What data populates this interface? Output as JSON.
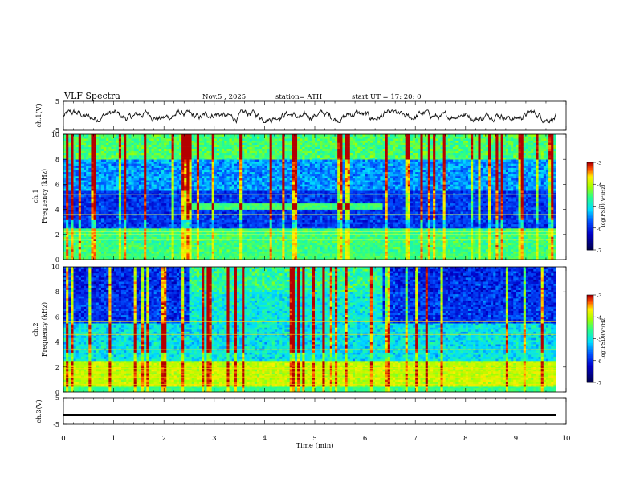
{
  "header": {
    "title": "VLF  Spectra",
    "date": "Nov.5  , 2025",
    "station": "station= ATH",
    "start": "start  UT  =    17: 20: 0"
  },
  "colorbar": {
    "label": "log(PSD)(V²/Hz)",
    "ticks": [
      "-3",
      "-4",
      "-5",
      "-6",
      "-7"
    ],
    "colors": [
      "#7f0000",
      "#ff0000",
      "#ffff00",
      "#00ff00",
      "#00ffff",
      "#0000ff",
      "#00007f"
    ]
  },
  "chart_data": [
    {
      "type": "line",
      "name": "ch1-waveform",
      "ylabel": "ch.1(V)",
      "xlim": [
        0,
        10
      ],
      "ylim": [
        -5,
        5
      ],
      "y_ticks": [
        "5",
        "-5"
      ],
      "description_values": {
        "x_end": 9.8,
        "baseline": 0.0,
        "approx_min": -2.0,
        "approx_max": 1.8
      }
    },
    {
      "type": "heatmap",
      "name": "ch1-spectrogram",
      "ylabel": "ch.1\nFrequency  (kHz)",
      "xlim": [
        0,
        10
      ],
      "ylim": [
        0,
        10
      ],
      "y_ticks": [
        "10",
        "8",
        "6",
        "4",
        "2",
        "0"
      ],
      "x_end": 9.8,
      "colorbar_range": [
        -7,
        -3
      ],
      "features": {
        "bright_band_khz": [
          3.9,
          4.4
        ],
        "bright_band_time_min": [
          2.5,
          6.35
        ],
        "low_freq_band_khz": [
          0,
          2.5
        ]
      }
    },
    {
      "type": "heatmap",
      "name": "ch2-spectrogram",
      "ylabel": "ch.2\nFrequency  (kHz)",
      "xlim": [
        0,
        10
      ],
      "ylim": [
        0,
        10
      ],
      "y_ticks": [
        "10",
        "8",
        "6",
        "4",
        "2",
        "0"
      ],
      "x_end": 9.8,
      "colorbar_range": [
        -7,
        -3
      ],
      "features": {
        "enhanced_region_time_min": [
          2.5,
          6.35
        ],
        "low_freq_band_khz": [
          0,
          2.5
        ]
      }
    },
    {
      "type": "line",
      "name": "ch3-waveform",
      "ylabel": "ch.3(V)",
      "xlim": [
        0,
        10
      ],
      "ylim": [
        -5,
        5
      ],
      "y_ticks": [
        "5",
        "-5"
      ],
      "x_end": 9.8,
      "constant_value": -1.5
    }
  ],
  "x_axis": {
    "label": "Time  (min)",
    "ticks": [
      "0",
      "1",
      "2",
      "3",
      "4",
      "5",
      "6",
      "7",
      "8",
      "9",
      "10"
    ]
  }
}
